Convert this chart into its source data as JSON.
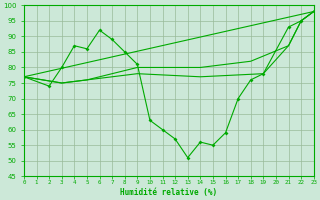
{
  "line1_x": [
    0,
    2,
    3,
    4,
    5,
    6,
    7,
    8,
    9,
    10,
    11,
    12,
    13,
    14,
    15,
    16,
    17,
    18,
    19,
    21,
    22,
    23
  ],
  "line1_y": [
    77,
    74,
    80,
    87,
    86,
    92,
    89,
    85,
    81,
    63,
    60,
    57,
    51,
    56,
    55,
    59,
    70,
    76,
    78,
    93,
    95,
    98
  ],
  "line2_x": [
    0,
    23
  ],
  "line2_y": [
    77,
    98
  ],
  "line3_x": [
    0,
    3,
    5,
    9,
    14,
    19,
    21,
    22,
    23
  ],
  "line3_y": [
    77,
    75,
    76,
    78,
    77,
    78,
    87,
    95,
    98
  ],
  "line4_x": [
    0,
    3,
    5,
    9,
    14,
    18,
    21,
    22,
    23
  ],
  "line4_y": [
    77,
    75,
    76,
    80,
    80,
    82,
    87,
    95,
    98
  ],
  "xlabel": "Humidité relative (%)",
  "ylim": [
    45,
    100
  ],
  "xlim": [
    0,
    23
  ],
  "yticks": [
    45,
    50,
    55,
    60,
    65,
    70,
    75,
    80,
    85,
    90,
    95,
    100
  ],
  "line_color": "#00aa00",
  "bg_color": "#cce8d8",
  "grid_color": "#99bb99"
}
